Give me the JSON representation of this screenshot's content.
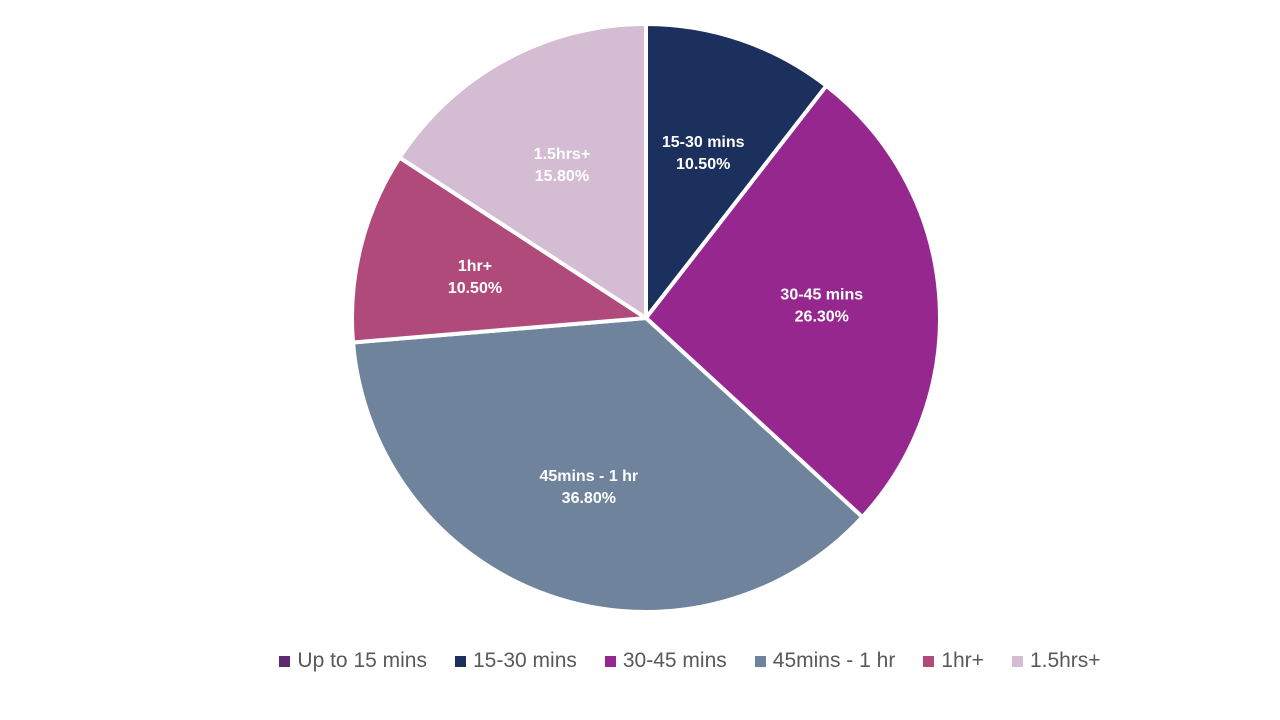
{
  "chart_data": {
    "type": "pie",
    "title": "",
    "slices": [
      {
        "name": "Up to 15 mins",
        "value": 0.0,
        "color": "#5b2c6f",
        "value_label": ""
      },
      {
        "name": "15-30 mins",
        "value": 10.5,
        "color": "#1b305c",
        "value_label": "10.50%"
      },
      {
        "name": "30-45 mins",
        "value": 26.3,
        "color": "#96278e",
        "value_label": "26.30%"
      },
      {
        "name": "45mins - 1 hr",
        "value": 36.8,
        "color": "#6f849c",
        "value_label": "36.80%"
      },
      {
        "name": "1hr+",
        "value": 10.5,
        "color": "#b04a7a",
        "value_label": "10.50%"
      },
      {
        "name": "1.5hrs+",
        "value": 15.8,
        "color": "#d4bcd2",
        "value_label": "15.80%"
      }
    ],
    "legend_position": "bottom"
  }
}
